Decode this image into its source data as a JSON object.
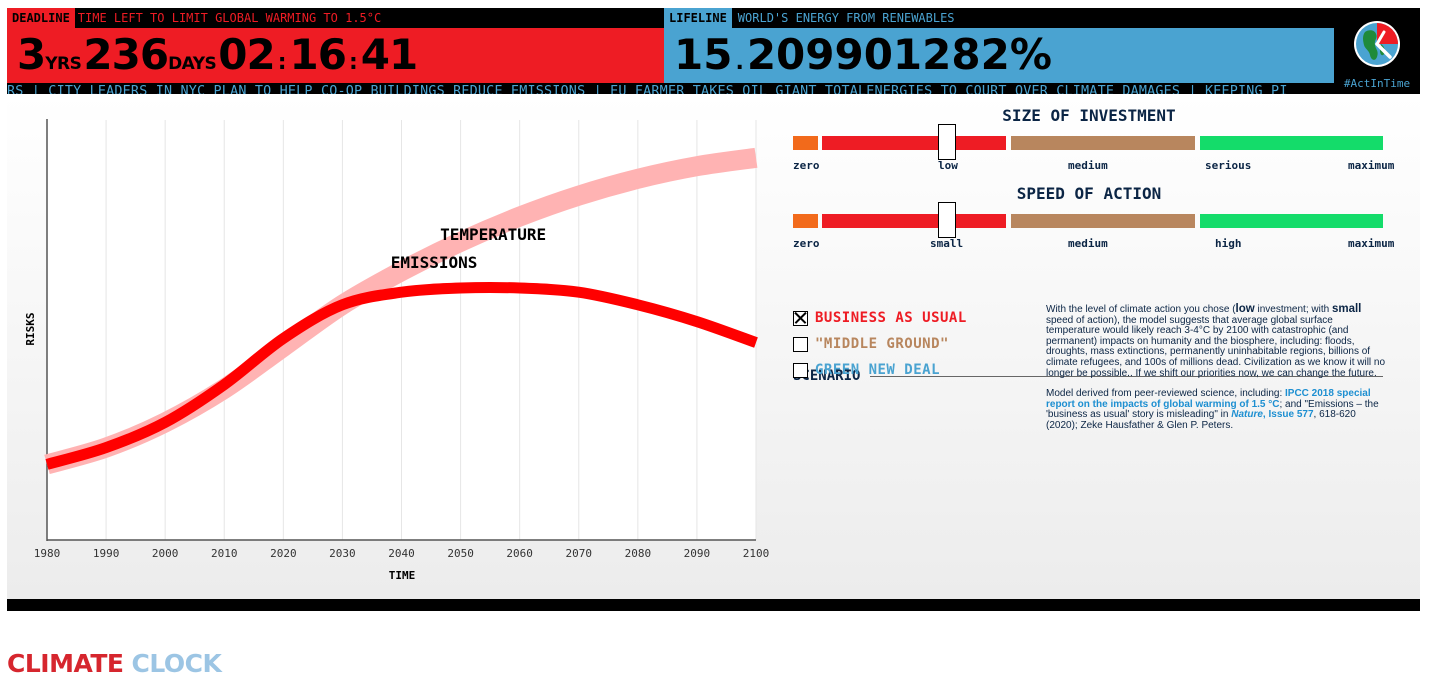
{
  "deadline": {
    "tag": "DEADLINE",
    "subtitle": "TIME LEFT TO LIMIT GLOBAL WARMING TO 1.5°C",
    "years": "3",
    "years_unit": "YRS",
    "days": "236",
    "days_unit": "DAYS",
    "hours": "02",
    "minutes": "16",
    "seconds": "41",
    "separator": ":"
  },
  "lifeline": {
    "tag": "LIFELINE",
    "subtitle": "WORLD'S ENERGY FROM RENEWABLES",
    "integer": "15",
    "decimal_sep": ".",
    "fraction": "209901282%"
  },
  "hashtag": "#ActInTime",
  "ticker": "RS | CITY LEADERS IN NYC PLAN TO HELP CO-OP BUILDINGS REDUCE EMISSIONS | EU FARMER TAKES OIL GIANT TOTALENERGIES TO COURT OVER CLIMATE DAMAGES | KEEPING PI",
  "chart_data": {
    "type": "line",
    "xlabel": "TIME",
    "ylabel": "RISKS",
    "x_ticks": [
      1980,
      1990,
      2000,
      2010,
      2020,
      2030,
      2040,
      2050,
      2060,
      2070,
      2080,
      2090,
      2100
    ],
    "xlim": [
      1980,
      2100
    ],
    "ylim": [
      0,
      100
    ],
    "grid": true,
    "series": [
      {
        "name": "TEMPERATURE",
        "color": "#ffb3b3",
        "x": [
          1980,
          1990,
          2000,
          2010,
          2020,
          2030,
          2040,
          2050,
          2060,
          2070,
          2080,
          2090,
          2100
        ],
        "values": [
          18,
          22,
          28,
          36,
          46,
          56,
          64,
          71,
          77,
          82,
          86,
          89,
          91
        ]
      },
      {
        "name": "EMISSIONS",
        "color": "#ff0000",
        "x": [
          1980,
          1990,
          2000,
          2010,
          2020,
          2030,
          2040,
          2050,
          2060,
          2070,
          2080,
          2090,
          2100
        ],
        "values": [
          18,
          22,
          28,
          37,
          48,
          56,
          59,
          60,
          60,
          59,
          56,
          52,
          47
        ]
      }
    ]
  },
  "investment": {
    "title": "SIZE OF INVESTMENT",
    "labels": [
      "zero",
      "low",
      "medium",
      "serious",
      "maximum"
    ],
    "value": 0.25
  },
  "speed": {
    "title": "SPEED OF ACTION",
    "labels": [
      "zero",
      "small",
      "medium",
      "high",
      "maximum"
    ],
    "value": 0.25
  },
  "scenario": {
    "title": "SCENARIO",
    "options": [
      {
        "label": "BUSINESS AS USUAL",
        "color": "#ee1c24",
        "checked": true
      },
      {
        "label": "\"MIDDLE GROUND\"",
        "color": "#b8865e",
        "checked": false
      },
      {
        "label": "GREEN NEW DEAL",
        "color": "#4aa3d1",
        "checked": false
      }
    ]
  },
  "description": {
    "p1_a": "With the level of climate action you chose (",
    "p1_inv": "low",
    "p1_b": " investment; with ",
    "p1_spd": "small",
    "p1_c": " speed of action), the model suggests that average global surface temperature would likely reach 3-4°C by 2100 with catastrophic (and permanent) impacts on humanity and the biosphere, including: floods, droughts, mass extinctions, permanently uninhabitable regions, billions of climate refugees, and 100s of millions dead. Civilization as we know it will no longer be possible.. If we shift our priorities now, we can change the future.",
    "p2_a": "Model derived from peer-reviewed science, including: ",
    "p2_link1": "IPCC 2018 special report on the impacts of global warming of 1.5 °C",
    "p2_b": "; and \"Emissions – the 'business as usual' story is misleading\" in ",
    "p2_link2": "Nature",
    "p2_link2b": ", Issue 577",
    "p2_c": ", 618-620 (2020); Zeke Hausfather & Glen P. Peters."
  },
  "logo": {
    "part1": "CLIMATE",
    "part2": "CLOCK"
  }
}
